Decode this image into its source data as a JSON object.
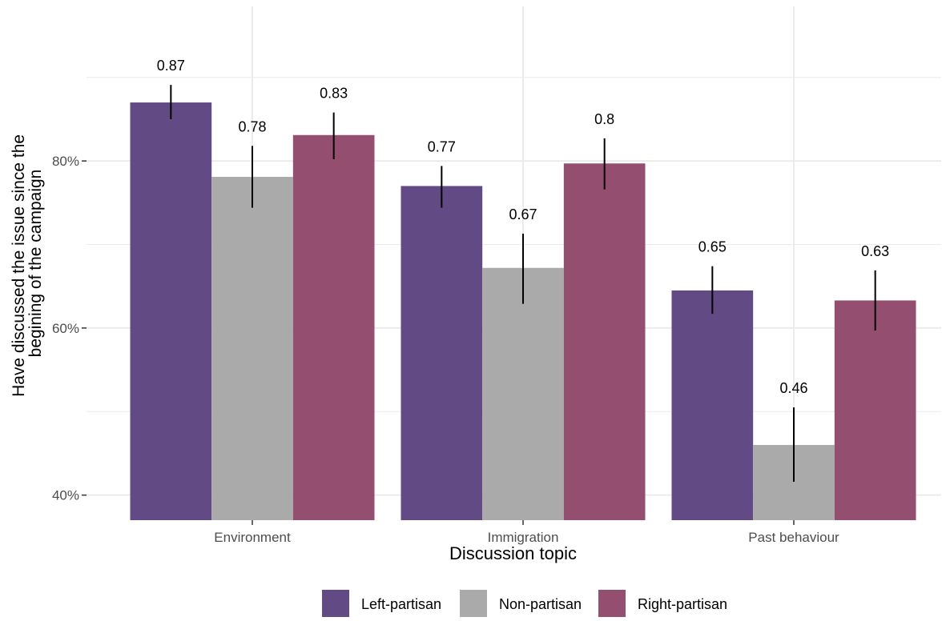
{
  "chart_data": {
    "type": "bar",
    "title": "",
    "xlabel": "Discussion topic",
    "ylabel_lines": [
      "Have discussed the issue since the",
      "begining of the campaign"
    ],
    "categories": [
      "Environment",
      "Immigration",
      "Past behaviour"
    ],
    "ylim": [
      0.37,
      0.985
    ],
    "yticks": [
      0.4,
      0.6,
      0.8
    ],
    "ytick_labels": [
      "40%",
      "60%",
      "80%"
    ],
    "grid": true,
    "legend_position": "bottom",
    "series": [
      {
        "name": "Left-partisan",
        "color": "#624A85",
        "values": [
          0.87,
          0.77,
          0.645
        ],
        "labels": [
          "0.87",
          "0.77",
          "0.65"
        ],
        "ci_low": [
          0.85,
          0.744,
          0.617
        ],
        "ci_high": [
          0.891,
          0.794,
          0.674
        ]
      },
      {
        "name": "Non-partisan",
        "color": "#AAAAAA",
        "values": [
          0.781,
          0.672,
          0.46
        ],
        "labels": [
          "0.78",
          "0.67",
          "0.46"
        ],
        "ci_low": [
          0.744,
          0.629,
          0.416
        ],
        "ci_high": [
          0.818,
          0.713,
          0.505
        ]
      },
      {
        "name": "Right-partisan",
        "color": "#944E6F",
        "values": [
          0.831,
          0.797,
          0.633
        ],
        "labels": [
          "0.83",
          "0.8",
          "0.63"
        ],
        "ci_low": [
          0.802,
          0.766,
          0.597
        ],
        "ci_high": [
          0.858,
          0.827,
          0.669
        ]
      }
    ]
  }
}
